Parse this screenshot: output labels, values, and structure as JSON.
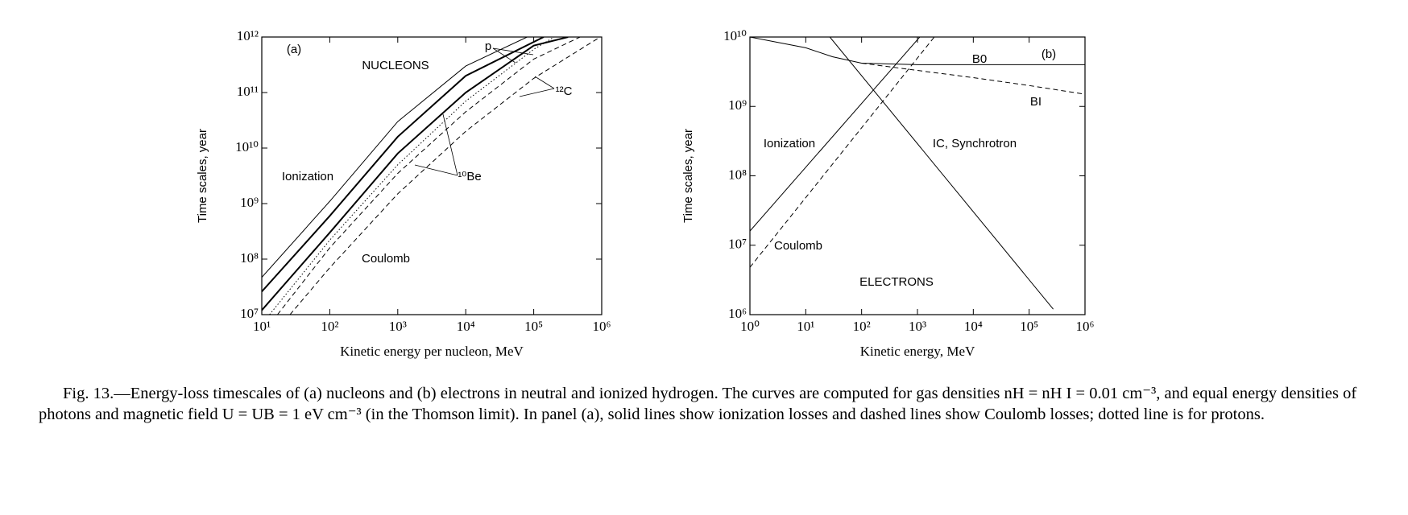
{
  "chart_data": [
    {
      "type": "line",
      "xscale": "log",
      "yscale": "log",
      "xlabel": "Kinetic energy per nucleon, MeV",
      "ylabel": "Time scales, year",
      "xlim": [
        10,
        1000000
      ],
      "ylim": [
        10000000,
        1000000000000
      ],
      "xticks": [
        {
          "value": 10,
          "label": "10¹"
        },
        {
          "value": 100,
          "label": "10²"
        },
        {
          "value": 1000,
          "label": "10³"
        },
        {
          "value": 10000,
          "label": "10⁴"
        },
        {
          "value": 100000,
          "label": "10⁵"
        },
        {
          "value": 1000000,
          "label": "10⁶"
        }
      ],
      "yticks": [
        {
          "value": 10000000,
          "label": "10⁷"
        },
        {
          "value": 100000000,
          "label": "10⁸"
        },
        {
          "value": 1000000000,
          "label": "10⁹"
        },
        {
          "value": 10000000000,
          "label": "10¹⁰"
        },
        {
          "value": 100000000000,
          "label": "10¹¹"
        },
        {
          "value": 1000000000000,
          "label": "10¹²"
        }
      ],
      "annotations": [
        "(a)",
        "NUCLEONS",
        "Ionization",
        "Coulomb",
        "p",
        "¹²C",
        "¹⁰Be"
      ],
      "series": [
        {
          "color": "#000000",
          "dash": "solid",
          "width": 1,
          "x": [
            10,
            100,
            1000,
            10000,
            80000
          ],
          "values": [
            47000000,
            1100000000,
            30000000000,
            300000000000,
            1000000000000
          ]
        },
        {
          "color": "#000000",
          "dash": "solid",
          "width": 2,
          "x": [
            10,
            100,
            1000,
            10000,
            140000
          ],
          "values": [
            26000000,
            600000000,
            16000000000,
            200000000000,
            1000000000000
          ]
        },
        {
          "color": "#000000",
          "dash": "solid",
          "width": 2,
          "x": [
            10,
            100,
            1000,
            10000,
            100000,
            320000
          ],
          "values": [
            12000000,
            300000000,
            8000000000,
            100000000000,
            700000000000,
            1000000000000
          ]
        },
        {
          "color": "#000000",
          "dash": "dotted",
          "width": 1,
          "x": [
            13,
            100,
            1000,
            10000,
            100000,
            200000
          ],
          "values": [
            10000000,
            220000000,
            5000000000,
            70000000000,
            600000000000,
            1000000000000
          ]
        },
        {
          "color": "#000000",
          "dash": "dashed",
          "width": 1,
          "x": [
            17,
            100,
            1000,
            10000,
            100000,
            480000
          ],
          "values": [
            10000000,
            160000000,
            3500000000,
            45000000000,
            400000000000,
            1000000000000
          ]
        },
        {
          "color": "#000000",
          "dash": "dashed",
          "width": 1,
          "x": [
            26,
            100,
            1000,
            10000,
            100000,
            950000
          ],
          "values": [
            10000000,
            70000000,
            1500000000,
            20000000000,
            180000000000,
            1000000000000
          ]
        }
      ]
    },
    {
      "type": "line",
      "xscale": "log",
      "yscale": "log",
      "xlabel": "Kinetic energy, MeV",
      "ylabel": "Time scales, year",
      "xlim": [
        1,
        1000000
      ],
      "ylim": [
        1000000,
        10000000000
      ],
      "xticks": [
        {
          "value": 1,
          "label": "10⁰"
        },
        {
          "value": 10,
          "label": "10¹"
        },
        {
          "value": 100,
          "label": "10²"
        },
        {
          "value": 1000,
          "label": "10³"
        },
        {
          "value": 10000,
          "label": "10⁴"
        },
        {
          "value": 100000,
          "label": "10⁵"
        },
        {
          "value": 1000000,
          "label": "10⁶"
        }
      ],
      "yticks": [
        {
          "value": 1000000,
          "label": "10⁶"
        },
        {
          "value": 10000000,
          "label": "10⁷"
        },
        {
          "value": 100000000,
          "label": "10⁸"
        },
        {
          "value": 1000000000,
          "label": "10⁹"
        },
        {
          "value": 10000000000,
          "label": "10¹⁰"
        }
      ],
      "annotations": [
        "(b)",
        "B0",
        "BI",
        "Ionization",
        "IC, Synchrotron",
        "Coulomb",
        "ELECTRONS"
      ],
      "series": [
        {
          "color": "#000000",
          "dash": "solid",
          "width": 1,
          "x": [
            1,
            1100
          ],
          "values": [
            16000000,
            10000000000
          ]
        },
        {
          "color": "#000000",
          "dash": "dashed",
          "width": 1,
          "x": [
            1,
            2000
          ],
          "values": [
            4800000,
            10000000000
          ]
        },
        {
          "color": "#000000",
          "dash": "solid",
          "width": 1,
          "x": [
            27,
            270000
          ],
          "values": [
            10000000000,
            1200000
          ]
        },
        {
          "color": "#000000",
          "dash": "solid",
          "width": 1,
          "x": [
            1,
            10,
            30,
            100,
            1000,
            1000000
          ],
          "values": [
            10000000000,
            7000000000,
            5200000000,
            4200000000,
            4000000000,
            4000000000
          ]
        },
        {
          "color": "#000000",
          "dash": "dashed",
          "width": 1,
          "x": [
            100,
            1000,
            10000,
            100000,
            1000000
          ],
          "values": [
            4200000000,
            3300000000,
            2600000000,
            2000000000,
            1500000000
          ]
        }
      ]
    }
  ],
  "caption": "Fig. 13.—Energy-loss timescales of (a) nucleons and (b) electrons in neutral and ionized hydrogen. The curves are computed for gas densities nH = nH I = 0.01 cm⁻³, and equal energy densities of photons and magnetic field U = UB = 1 eV cm⁻³ (in the Thomson limit). In panel (a), solid lines show ionization losses and dashed lines show Coulomb losses; dotted line is for protons."
}
